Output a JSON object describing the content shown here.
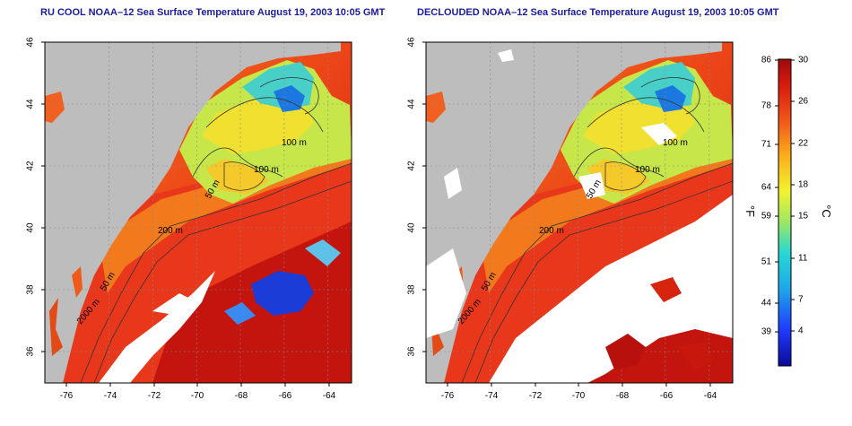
{
  "left_panel": {
    "title": "RU COOL NOAA–12 Sea Surface Temperature August 19, 2003 10:05 GMT"
  },
  "right_panel": {
    "title": "DECLOUDED NOAA–12 Sea Surface Temperature August 19, 2003 10:05 GMT"
  },
  "axes": {
    "x_ticks": [
      "-76",
      "-74",
      "-72",
      "-70",
      "-68",
      "-66",
      "-64"
    ],
    "y_ticks": [
      "46",
      "44",
      "42",
      "40",
      "38",
      "36"
    ]
  },
  "contour_labels": [
    "100 m",
    "100 m",
    "50 m",
    "200 m",
    "50 m",
    "2000 m"
  ],
  "colorbar": {
    "fahrenheit_ticks": [
      "86",
      "78",
      "71",
      "64",
      "59",
      "51",
      "44",
      "39"
    ],
    "celsius_ticks": [
      "30",
      "26",
      "22",
      "18",
      "15",
      "11",
      "7",
      "4"
    ],
    "fahrenheit_unit": "°F",
    "celsius_unit": "°C"
  },
  "colors": {
    "land": "#bdbdbd",
    "cloud": "#ffffff",
    "title": "#1a1a9c",
    "warm": "#d42a10",
    "cold": "#1c3cd8"
  }
}
